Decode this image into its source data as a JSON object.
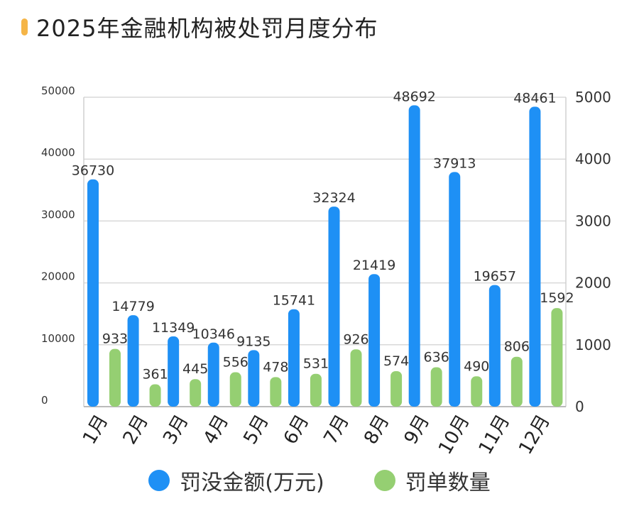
{
  "title": "2025年金融机构被处罚月度分布",
  "colors": {
    "amount": "#1E90F5",
    "count": "#95CF72",
    "accent": "#F5B547"
  },
  "chart_data": {
    "type": "bar",
    "title": "2025年金融机构被处罚月度分布",
    "categories": [
      "1月",
      "2月",
      "3月",
      "4月",
      "5月",
      "6月",
      "7月",
      "8月",
      "9月",
      "10月",
      "11月",
      "12月"
    ],
    "series": [
      {
        "name": "罚没金额(万元)",
        "axis": "left",
        "values": [
          36730,
          14779,
          11349,
          10346,
          9135,
          15741,
          32324,
          21419,
          48692,
          37913,
          19657,
          48461
        ]
      },
      {
        "name": "罚单数量",
        "axis": "right",
        "values": [
          933,
          361,
          445,
          556,
          478,
          531,
          926,
          574,
          636,
          490,
          806,
          1592
        ]
      }
    ],
    "y_left": {
      "ylim": [
        0,
        50000
      ],
      "ticks": [
        "0",
        "10000",
        "20000",
        "30000",
        "40000",
        "50000"
      ]
    },
    "y_right": {
      "ylim": [
        0,
        5000
      ],
      "ticks": [
        "0",
        "1000",
        "2000",
        "3000",
        "4000",
        "5000"
      ]
    },
    "legend": [
      "罚没金额(万元)",
      "罚单数量"
    ],
    "legend_position": "bottom"
  }
}
